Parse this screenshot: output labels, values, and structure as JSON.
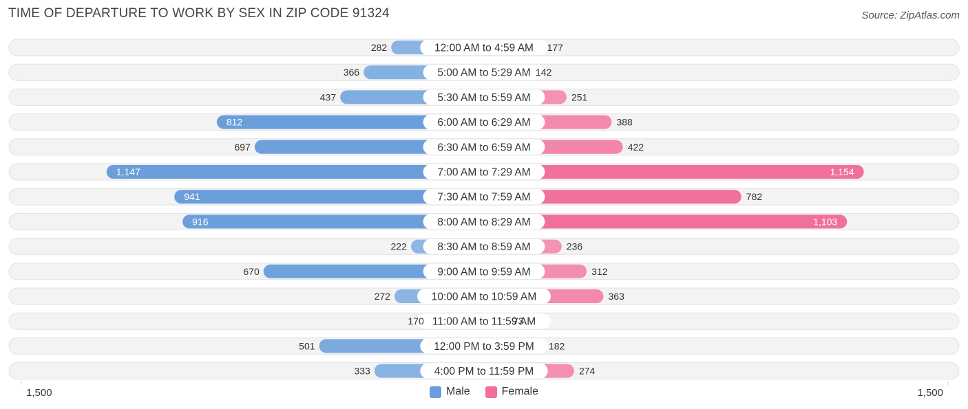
{
  "chart_data": {
    "type": "bar",
    "orientation": "horizontal-diverging",
    "title": "TIME OF DEPARTURE TO WORK BY SEX IN ZIP CODE 91324",
    "source": "Source: ZipAtlas.com",
    "categories": [
      "12:00 AM to 4:59 AM",
      "5:00 AM to 5:29 AM",
      "5:30 AM to 5:59 AM",
      "6:00 AM to 6:29 AM",
      "6:30 AM to 6:59 AM",
      "7:00 AM to 7:29 AM",
      "7:30 AM to 7:59 AM",
      "8:00 AM to 8:29 AM",
      "8:30 AM to 8:59 AM",
      "9:00 AM to 9:59 AM",
      "10:00 AM to 10:59 AM",
      "11:00 AM to 11:59 AM",
      "12:00 PM to 3:59 PM",
      "4:00 PM to 11:59 PM"
    ],
    "series": [
      {
        "name": "Male",
        "color": "#6a9fdb",
        "values": [
          282,
          366,
          437,
          812,
          697,
          1147,
          941,
          916,
          222,
          670,
          272,
          170,
          501,
          333
        ]
      },
      {
        "name": "Female",
        "color": "#f0709a",
        "values": [
          177,
          142,
          251,
          388,
          422,
          1154,
          782,
          1103,
          236,
          312,
          363,
          73,
          182,
          274
        ]
      }
    ],
    "value_labels": {
      "Male": [
        "282",
        "366",
        "437",
        "812",
        "697",
        "1,147",
        "941",
        "916",
        "222",
        "670",
        "272",
        "170",
        "501",
        "333"
      ],
      "Female": [
        "177",
        "142",
        "251",
        "388",
        "422",
        "1,154",
        "782",
        "1,103",
        "236",
        "312",
        "363",
        "73",
        "182",
        "274"
      ]
    },
    "axis": {
      "min_label": "1,500",
      "max_label": "1,500",
      "range": [
        -1500,
        1500
      ]
    },
    "legend": {
      "position": "bottom-center",
      "items": [
        "Male",
        "Female"
      ]
    }
  }
}
